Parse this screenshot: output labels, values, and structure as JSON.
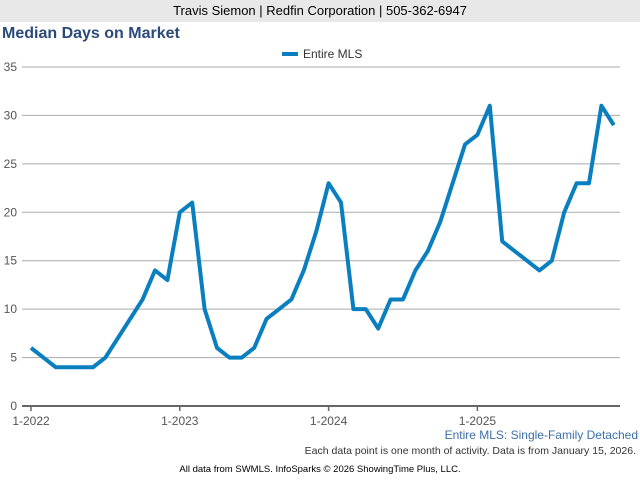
{
  "header": {
    "agent": "Travis Siemon | Redfin Corporation | 505-362-6947"
  },
  "chart_data": {
    "type": "line",
    "title": "Median Days on Market",
    "ylim": [
      0,
      35
    ],
    "yticks": [
      0,
      5,
      10,
      15,
      20,
      25,
      30,
      35
    ],
    "xticks": [
      {
        "label": "1-2022",
        "index": 0
      },
      {
        "label": "1-2023",
        "index": 12
      },
      {
        "label": "1-2024",
        "index": 24
      },
      {
        "label": "1-2025",
        "index": 36
      }
    ],
    "grid": true,
    "legend": "top-center",
    "series": [
      {
        "name": "Entire MLS",
        "color": "#0a7fc0",
        "values": [
          6,
          5,
          4,
          4,
          4,
          4,
          5,
          7,
          9,
          11,
          14,
          13,
          20,
          21,
          10,
          6,
          5,
          5,
          6,
          9,
          10,
          11,
          14,
          18,
          23,
          21,
          10,
          10,
          8,
          11,
          11,
          14,
          16,
          19,
          23,
          27,
          28,
          31,
          17,
          16,
          15,
          14,
          15,
          20,
          23,
          23,
          31,
          29
        ]
      }
    ],
    "subtitle": "Entire MLS: Single-Family Detached",
    "note": "Each data point is one month of activity. Data is from January 15, 2026.",
    "footer": "All data from SWMLS. InfoSparks © 2026 ShowingTime Plus, LLC."
  }
}
